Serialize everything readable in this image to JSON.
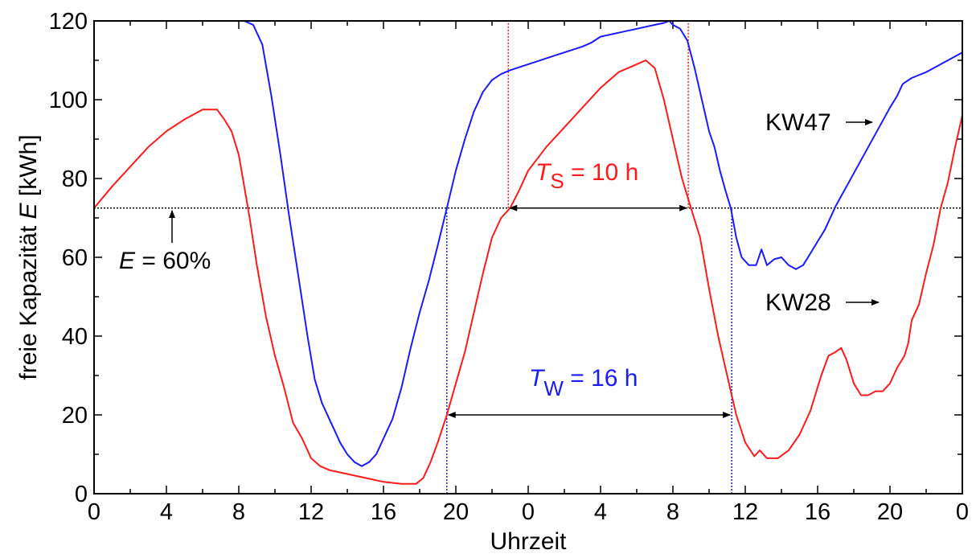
{
  "chart_data": {
    "type": "line",
    "xlabel": "Uhrzeit",
    "ylabel_prefix": "freie Kapazität ",
    "ylabel_var": "E",
    "ylabel_suffix": " [kWh]",
    "xlim": [
      0,
      48
    ],
    "ylim": [
      0,
      120
    ],
    "x_tick_values": [
      0,
      4,
      8,
      12,
      16,
      20,
      24,
      28,
      32,
      36,
      40,
      44,
      48
    ],
    "x_tick_labels": [
      "0",
      "4",
      "8",
      "12",
      "16",
      "20",
      "0",
      "4",
      "8",
      "12",
      "16",
      "20",
      "0"
    ],
    "y_ticks": [
      0,
      20,
      40,
      60,
      80,
      100,
      120
    ],
    "grid": false,
    "reference_line": {
      "y": 72.5,
      "color": "#000000",
      "style": "dotted"
    },
    "series": [
      {
        "name": "KW47",
        "color": "#1a1aff",
        "points": [
          [
            8.3,
            120
          ],
          [
            8.8,
            119
          ],
          [
            9.3,
            114
          ],
          [
            9.8,
            101
          ],
          [
            10.3,
            86
          ],
          [
            10.8,
            70
          ],
          [
            11.3,
            55
          ],
          [
            11.8,
            40
          ],
          [
            12.2,
            29
          ],
          [
            12.6,
            23
          ],
          [
            13.0,
            19
          ],
          [
            13.3,
            16
          ],
          [
            13.6,
            13
          ],
          [
            14.0,
            10
          ],
          [
            14.4,
            8
          ],
          [
            14.8,
            7
          ],
          [
            15.2,
            8
          ],
          [
            15.6,
            10
          ],
          [
            16.0,
            14
          ],
          [
            16.5,
            19
          ],
          [
            17.0,
            27
          ],
          [
            17.5,
            37
          ],
          [
            18.0,
            46
          ],
          [
            18.5,
            54
          ],
          [
            19.0,
            63
          ],
          [
            19.5,
            72.5
          ],
          [
            20.0,
            82
          ],
          [
            20.5,
            90
          ],
          [
            21.0,
            97
          ],
          [
            21.5,
            102
          ],
          [
            22.0,
            105
          ],
          [
            22.5,
            106.5
          ],
          [
            23.0,
            107.5
          ],
          [
            24.0,
            109
          ],
          [
            25.0,
            110.5
          ],
          [
            26.0,
            112
          ],
          [
            27.0,
            113.5
          ],
          [
            27.5,
            114.5
          ],
          [
            28.0,
            116
          ],
          [
            29.0,
            117
          ],
          [
            30.0,
            118
          ],
          [
            31.0,
            119
          ],
          [
            31.5,
            119.5
          ],
          [
            31.8,
            120
          ],
          [
            32.0,
            119
          ],
          [
            32.4,
            118
          ],
          [
            32.8,
            115
          ],
          [
            33.2,
            108
          ],
          [
            33.6,
            100
          ],
          [
            34.0,
            92
          ],
          [
            34.3,
            88
          ],
          [
            34.6,
            82
          ],
          [
            34.9,
            77
          ],
          [
            35.2,
            72.5
          ],
          [
            35.5,
            65
          ],
          [
            35.8,
            60
          ],
          [
            36.2,
            58
          ],
          [
            36.6,
            58
          ],
          [
            36.9,
            62
          ],
          [
            37.2,
            58
          ],
          [
            37.6,
            59.5
          ],
          [
            38.0,
            60
          ],
          [
            38.4,
            58
          ],
          [
            38.8,
            57
          ],
          [
            39.2,
            58
          ],
          [
            39.6,
            61
          ],
          [
            40.0,
            64
          ],
          [
            40.4,
            67
          ],
          [
            41.0,
            73
          ],
          [
            41.6,
            78
          ],
          [
            42.2,
            83
          ],
          [
            42.8,
            88
          ],
          [
            43.4,
            93
          ],
          [
            44.0,
            98
          ],
          [
            44.4,
            101
          ],
          [
            44.7,
            104
          ],
          [
            45.2,
            105.5
          ],
          [
            46.0,
            107
          ],
          [
            47.0,
            109.5
          ],
          [
            48.0,
            112
          ]
        ]
      },
      {
        "name": "KW28",
        "color": "#ff1a1a",
        "points": [
          [
            0,
            72.5
          ],
          [
            1,
            78
          ],
          [
            2,
            83
          ],
          [
            3,
            88
          ],
          [
            4,
            92
          ],
          [
            5,
            95
          ],
          [
            6,
            97.5
          ],
          [
            6.8,
            97.5
          ],
          [
            7.2,
            95
          ],
          [
            7.6,
            92
          ],
          [
            8.0,
            86
          ],
          [
            8.3,
            78
          ],
          [
            8.6,
            70
          ],
          [
            9.0,
            58
          ],
          [
            9.5,
            45
          ],
          [
            10.0,
            35
          ],
          [
            10.5,
            27
          ],
          [
            11.0,
            18
          ],
          [
            11.5,
            14
          ],
          [
            12.0,
            9
          ],
          [
            12.5,
            7
          ],
          [
            13.0,
            6
          ],
          [
            14.0,
            5
          ],
          [
            15.0,
            4
          ],
          [
            16.0,
            3
          ],
          [
            17.0,
            2.5
          ],
          [
            17.8,
            2.5
          ],
          [
            18.2,
            4
          ],
          [
            18.6,
            8
          ],
          [
            19.0,
            13
          ],
          [
            19.5,
            20
          ],
          [
            20.0,
            28
          ],
          [
            20.5,
            36
          ],
          [
            21.0,
            46
          ],
          [
            21.5,
            56
          ],
          [
            22.0,
            65
          ],
          [
            22.5,
            70
          ],
          [
            23.0,
            72.5
          ],
          [
            23.5,
            77
          ],
          [
            24.0,
            82
          ],
          [
            25.0,
            88
          ],
          [
            26.0,
            93
          ],
          [
            27.0,
            98
          ],
          [
            28.0,
            103
          ],
          [
            29.0,
            107
          ],
          [
            30.0,
            109
          ],
          [
            30.5,
            110
          ],
          [
            31.0,
            108
          ],
          [
            31.5,
            100
          ],
          [
            32.0,
            90
          ],
          [
            32.5,
            80
          ],
          [
            33.0,
            72.5
          ],
          [
            33.5,
            65
          ],
          [
            34.0,
            52
          ],
          [
            34.5,
            40
          ],
          [
            35.0,
            30
          ],
          [
            35.5,
            20
          ],
          [
            36.0,
            13
          ],
          [
            36.5,
            9.5
          ],
          [
            36.8,
            11
          ],
          [
            37.2,
            9
          ],
          [
            37.8,
            9
          ],
          [
            38.4,
            11
          ],
          [
            39.0,
            15
          ],
          [
            39.6,
            21
          ],
          [
            40.2,
            30
          ],
          [
            40.6,
            35
          ],
          [
            41.0,
            36
          ],
          [
            41.3,
            37
          ],
          [
            41.6,
            34
          ],
          [
            42.0,
            28
          ],
          [
            42.4,
            25
          ],
          [
            42.8,
            25
          ],
          [
            43.2,
            26
          ],
          [
            43.6,
            26
          ],
          [
            44.0,
            28
          ],
          [
            44.4,
            32
          ],
          [
            44.8,
            35
          ],
          [
            45.0,
            38
          ],
          [
            45.2,
            44
          ],
          [
            45.6,
            48
          ],
          [
            46.0,
            56
          ],
          [
            46.4,
            63
          ],
          [
            46.8,
            72.5
          ],
          [
            47.2,
            79
          ],
          [
            47.6,
            88
          ],
          [
            48.0,
            96
          ]
        ]
      }
    ],
    "vlines": [
      {
        "x": 19.5,
        "y0": 0,
        "y1": 72.5,
        "color": "#1a1aff"
      },
      {
        "x": 35.25,
        "y0": 0,
        "y1": 72.5,
        "color": "#1a1aff"
      },
      {
        "x": 22.9,
        "y0": 72.5,
        "y1": 120,
        "color": "#ff1a1a"
      },
      {
        "x": 32.85,
        "y0": 72.5,
        "y1": 120,
        "color": "#ff1a1a"
      }
    ],
    "intervals": [
      {
        "label_var": "T",
        "label_sub": "S",
        "label_rest": " = 10 h",
        "color": "#ff1a1a",
        "x0": 22.9,
        "x1": 32.85,
        "y": 72.5
      },
      {
        "label_var": "T",
        "label_sub": "W",
        "label_rest": " = 16 h",
        "color": "#1a1aff",
        "x0": 19.5,
        "x1": 35.25,
        "y": 20
      }
    ],
    "annotations": [
      {
        "text_var": "E",
        "text_rest": " = 60%",
        "color": "#000000"
      },
      {
        "text": "KW47",
        "color": "#000000"
      },
      {
        "text": "KW28",
        "color": "#000000"
      }
    ]
  }
}
